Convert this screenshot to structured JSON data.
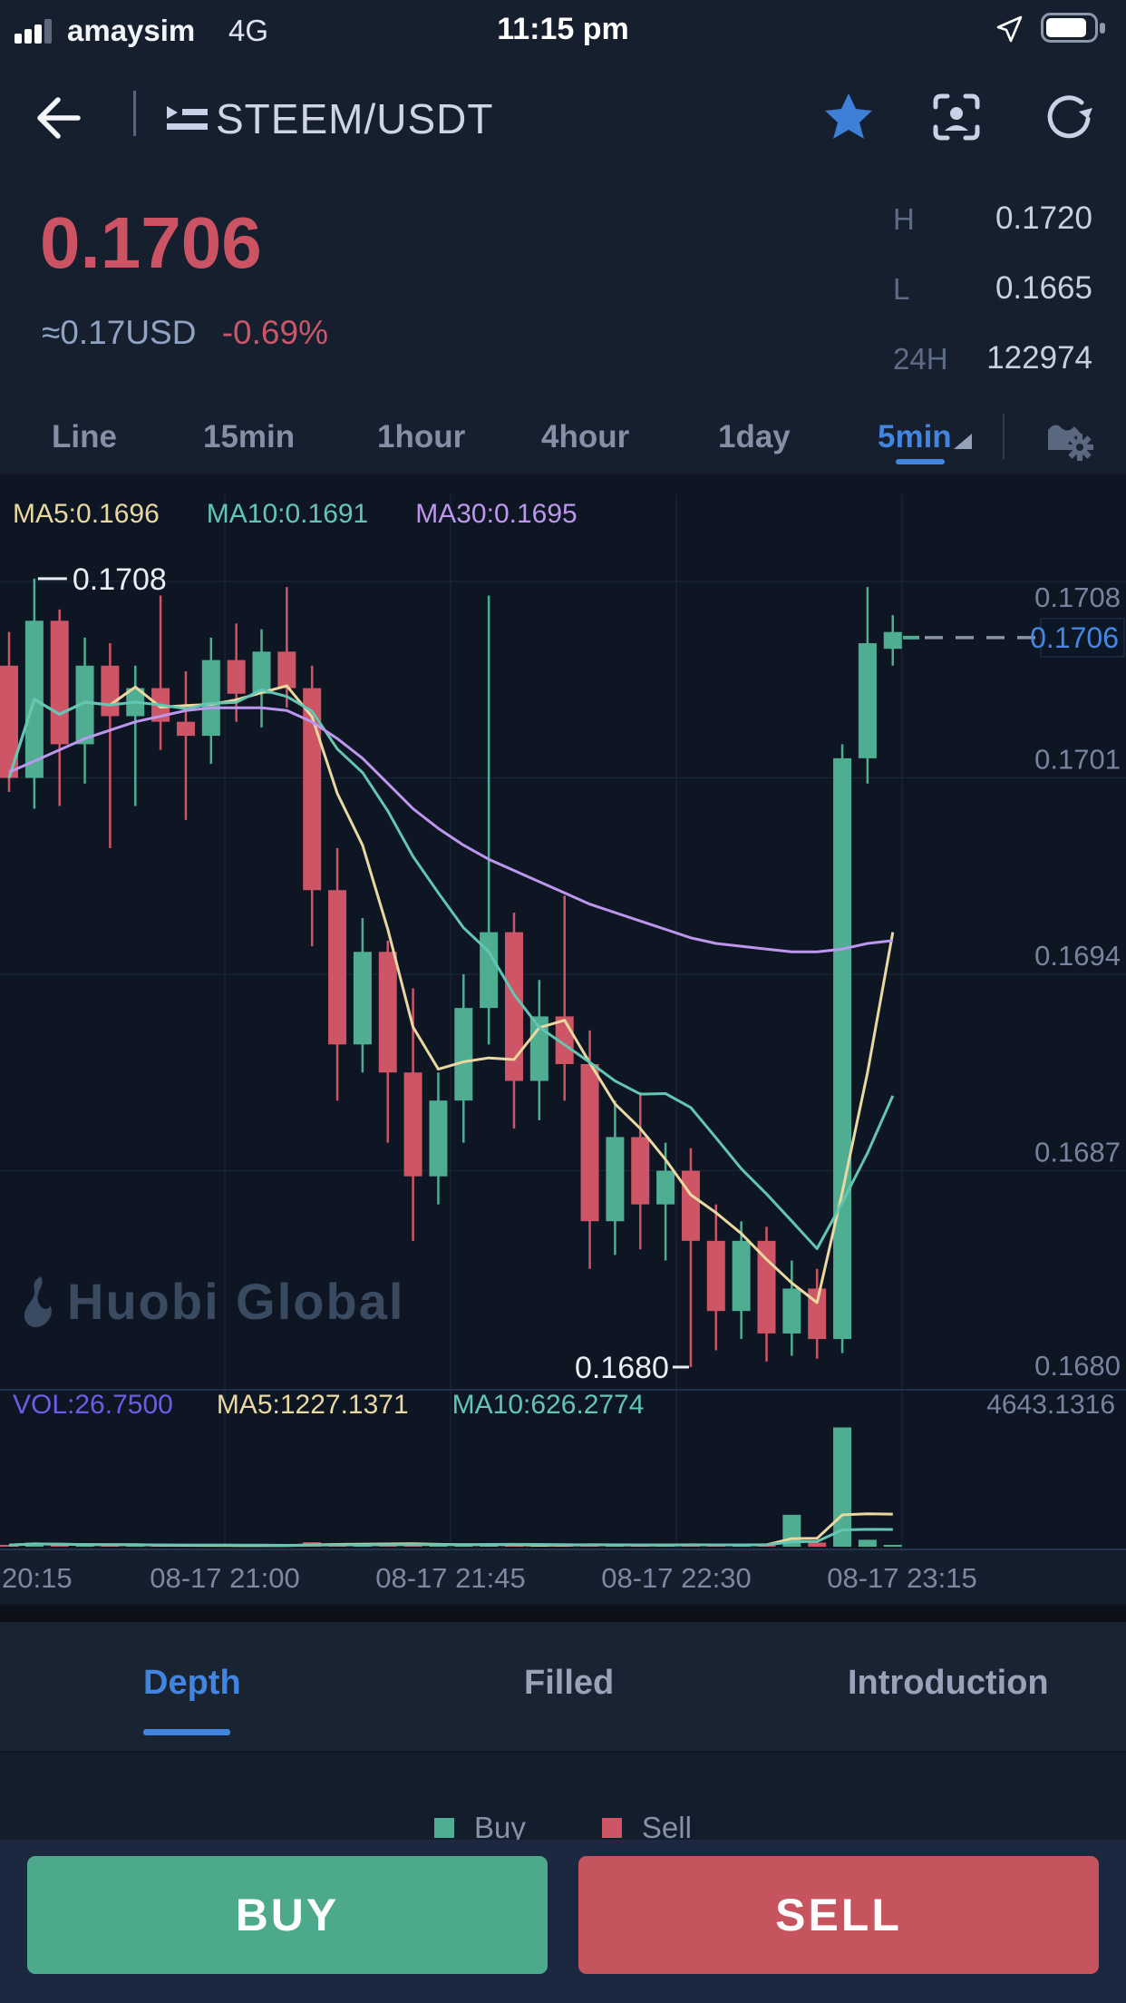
{
  "status_bar": {
    "carrier": "amaysim",
    "network": "4G",
    "time": "11:15 pm"
  },
  "header": {
    "pair": "STEEM/USDT"
  },
  "ticker": {
    "price": "0.1706",
    "fiat": "≈0.17USD",
    "change": "-0.69%",
    "high_label": "H",
    "high_value": "0.1720",
    "low_label": "L",
    "low_value": "0.1665",
    "vol24_label": "24H",
    "vol24_value": "122974"
  },
  "interval_tabs": {
    "line": "Line",
    "m15": "15min",
    "h1": "1hour",
    "h4": "4hour",
    "d1": "1day",
    "selected": "5min"
  },
  "chart_data": {
    "type": "candlestick",
    "interval": "5min",
    "title_overlays": {
      "ma5": "MA5:0.1696",
      "ma10": "MA10:0.1691",
      "ma30": "MA30:0.1695"
    },
    "volume_overlays": {
      "vol": "VOL:26.7500",
      "ma5": "MA5:1227.1371",
      "ma10": "MA10:626.2774",
      "max": "4643.1316"
    },
    "y_axis": {
      "labels": [
        "0.1708",
        "0.1701",
        "0.1694",
        "0.1687",
        "0.1680"
      ],
      "top_price": 0.1708,
      "step": 0.0007
    },
    "x_axis": {
      "labels": [
        "20:15",
        "08-17 21:00",
        "08-17 21:45",
        "08-17 22:30",
        "08-17 23:15"
      ]
    },
    "current_price": "0.1706",
    "annotations": {
      "high": "0.1708",
      "low": "0.1680"
    },
    "watermark": "Huobi Global",
    "volume_max": 4643.1316,
    "colors": {
      "up": "#4FAE92",
      "down": "#CD5565",
      "ma5": "#E9D9A0",
      "ma10": "#62C6B2",
      "ma30": "#BD96EE",
      "vol": "#6E5BE8",
      "accent": "#4787E0",
      "axis_text": "#76849E",
      "annotation": "#E9EEF5",
      "dashed": "#8B95A5"
    },
    "candles": [
      [
        0.1705,
        0.17062,
        0.17005,
        0.1701
      ],
      [
        0.1701,
        0.17081,
        0.16999,
        0.17066
      ],
      [
        0.17066,
        0.1707,
        0.17,
        0.17022
      ],
      [
        0.17022,
        0.1706,
        0.17008,
        0.1705
      ],
      [
        0.1705,
        0.17058,
        0.16985,
        0.17032
      ],
      [
        0.17032,
        0.1705,
        0.17,
        0.17042
      ],
      [
        0.17042,
        0.17075,
        0.1702,
        0.1703
      ],
      [
        0.1703,
        0.17048,
        0.16995,
        0.17025
      ],
      [
        0.17025,
        0.1706,
        0.17015,
        0.17052
      ],
      [
        0.17052,
        0.17065,
        0.1703,
        0.1704
      ],
      [
        0.1704,
        0.17063,
        0.17028,
        0.17055
      ],
      [
        0.17055,
        0.17078,
        0.17035,
        0.17042
      ],
      [
        0.17042,
        0.1705,
        0.1695,
        0.1697
      ],
      [
        0.1697,
        0.16985,
        0.16895,
        0.16915
      ],
      [
        0.16915,
        0.1696,
        0.16905,
        0.16948
      ],
      [
        0.16948,
        0.16952,
        0.1688,
        0.16905
      ],
      [
        0.16905,
        0.16935,
        0.16845,
        0.16868
      ],
      [
        0.16868,
        0.16905,
        0.16858,
        0.16895
      ],
      [
        0.16895,
        0.1694,
        0.1688,
        0.16928
      ],
      [
        0.16928,
        0.17075,
        0.16915,
        0.16955
      ],
      [
        0.16955,
        0.16962,
        0.16885,
        0.16902
      ],
      [
        0.16902,
        0.16938,
        0.16888,
        0.16925
      ],
      [
        0.16925,
        0.16968,
        0.16895,
        0.16908
      ],
      [
        0.16908,
        0.1692,
        0.16835,
        0.16852
      ],
      [
        0.16852,
        0.16895,
        0.1684,
        0.16882
      ],
      [
        0.16882,
        0.16898,
        0.16842,
        0.16858
      ],
      [
        0.16858,
        0.1688,
        0.16838,
        0.1687
      ],
      [
        0.1687,
        0.16878,
        0.168,
        0.16845
      ],
      [
        0.16845,
        0.16858,
        0.16806,
        0.1682
      ],
      [
        0.1682,
        0.16852,
        0.1681,
        0.16845
      ],
      [
        0.16845,
        0.1685,
        0.16802,
        0.16812
      ],
      [
        0.16812,
        0.16838,
        0.16804,
        0.16828
      ],
      [
        0.16828,
        0.16835,
        0.16803,
        0.1681
      ],
      [
        0.1681,
        0.17022,
        0.16805,
        0.17017
      ],
      [
        0.17017,
        0.17078,
        0.17008,
        0.17058
      ],
      [
        0.17056,
        0.17068,
        0.1705,
        0.17062
      ]
    ],
    "volumes": [
      60,
      140,
      70,
      50,
      55,
      40,
      45,
      50,
      40,
      35,
      40,
      55,
      160,
      120,
      60,
      90,
      110,
      50,
      45,
      80,
      70,
      40,
      55,
      95,
      60,
      50,
      45,
      100,
      70,
      55,
      80,
      1150,
      150,
      4300,
      250,
      26.75
    ],
    "ma30_path": [
      0.17012,
      0.17016,
      0.1702,
      0.17024,
      0.17027,
      0.1703,
      0.17032,
      0.17034,
      0.17035,
      0.17035,
      0.17035,
      0.17034,
      0.1703,
      0.17024,
      0.17017,
      0.17008,
      0.16999,
      0.16992,
      0.16986,
      0.16981,
      0.16977,
      0.16973,
      0.16969,
      0.16965,
      0.16962,
      0.16959,
      0.16956,
      0.16953,
      0.16951,
      0.1695,
      0.16949,
      0.16948,
      0.16948,
      0.16949,
      0.16951,
      0.16952
    ]
  },
  "bottom_tabs": {
    "depth": "Depth",
    "filled": "Filled",
    "introduction": "Introduction"
  },
  "legend": {
    "buy": "Buy",
    "sell": "Sell"
  },
  "actions": {
    "buy": "BUY",
    "sell": "SELL"
  }
}
